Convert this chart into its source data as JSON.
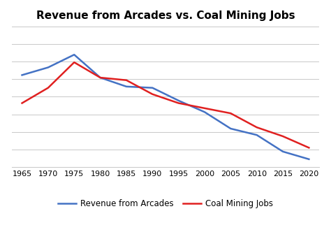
{
  "title": "Revenue from Arcades vs. Coal Mining Jobs",
  "years": [
    1965,
    1970,
    1975,
    1980,
    1985,
    1990,
    1995,
    2000,
    2005,
    2010,
    2015,
    2020
  ],
  "arcades": [
    0.72,
    0.78,
    0.88,
    0.7,
    0.63,
    0.62,
    0.52,
    0.43,
    0.3,
    0.25,
    0.12,
    0.06
  ],
  "coal": [
    0.5,
    0.62,
    0.82,
    0.7,
    0.68,
    0.57,
    0.5,
    0.46,
    0.42,
    0.31,
    0.24,
    0.15
  ],
  "arcades_color": "#4472C4",
  "coal_color": "#E02020",
  "legend_arcades": "Revenue from Arcades",
  "legend_coal": "Coal Mining Jobs",
  "background_color": "#ffffff",
  "grid_color": "#c8c8c8",
  "title_fontsize": 11,
  "legend_fontsize": 8.5,
  "tick_fontsize": 8
}
